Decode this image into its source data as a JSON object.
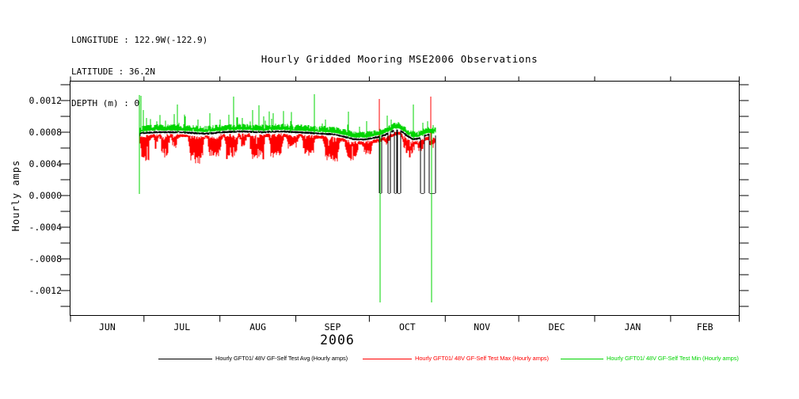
{
  "header": {
    "longitude": "LONGITUDE : 122.9W(-122.9)",
    "latitude": "LATITUDE : 36.2N",
    "depth": "DEPTH (m) : 0"
  },
  "title": "Hourly Gridded Mooring MSE2006 Observations",
  "chart_data": {
    "type": "line",
    "title": "Hourly Gridded Mooring MSE2006 Observations",
    "ylabel": "Hourly amps",
    "year_label": "2006",
    "ylim": [
      -0.00148,
      0.00145
    ],
    "yticks_major": [
      0.0012,
      0.0008,
      0.0004,
      0.0,
      -0.0004,
      -0.0008,
      -0.0012
    ],
    "ytick_labels": [
      "0.0012",
      "0.0008",
      "0.0004",
      "0.0000",
      "-.0004",
      "-.0008",
      "-.0012"
    ],
    "ytick_minor_step": 0.0002,
    "month_labels": [
      "JUN",
      "JUL",
      "AUG",
      "SEP",
      "OCT",
      "NOV",
      "DEC",
      "JAN",
      "FEB"
    ],
    "month_boundary_days": [
      0,
      30,
      61,
      92,
      122,
      153,
      183,
      214,
      245,
      273
    ],
    "x_axis_span_days": 273,
    "grid": false,
    "legend_position": "bottom",
    "data_range_days": [
      28,
      149
    ],
    "noise_seed": 20060601,
    "baseline_keyframes": [
      [
        28,
        0.00072
      ],
      [
        28.4,
        0.00079
      ],
      [
        35,
        0.0008
      ],
      [
        45,
        0.0008
      ],
      [
        55,
        0.00078
      ],
      [
        62,
        0.0008
      ],
      [
        70,
        0.00081
      ],
      [
        78,
        0.0008
      ],
      [
        85,
        0.00081
      ],
      [
        92,
        0.0008
      ],
      [
        98,
        0.00079
      ],
      [
        104,
        0.00078
      ],
      [
        108,
        0.00077
      ],
      [
        112,
        0.00074
      ],
      [
        116,
        0.00071
      ],
      [
        120,
        0.00071
      ],
      [
        124,
        0.00073
      ],
      [
        126,
        0.00074
      ],
      [
        128,
        0.00076
      ],
      [
        130,
        0.00079
      ],
      [
        132,
        0.00082
      ],
      [
        134,
        0.00083
      ],
      [
        136,
        0.00079
      ],
      [
        138,
        0.00074
      ],
      [
        140,
        0.00071
      ],
      [
        142,
        0.00072
      ],
      [
        144,
        0.00075
      ],
      [
        146,
        0.00077
      ],
      [
        149,
        0.00076
      ]
    ],
    "series": [
      {
        "name": "Hourly GFT01/ 48V GF-Self Test Avg (Hourly amps)",
        "color": "#000000",
        "role": "average-line",
        "down_spikes": [
          [
            28.12,
            0.00012
          ]
        ],
        "dropouts_to_floor": [
          [
            125.9,
            126.9
          ],
          [
            129.7,
            130.7
          ],
          [
            132.1,
            133.1
          ],
          [
            133.5,
            134.6
          ],
          [
            142.8,
            144.4
          ],
          [
            146.5,
            148.9
          ]
        ],
        "dropout_floor_value": 3e-05
      },
      {
        "name": "Hourly GFT01/ 48V GF-Self Test Max (Hourly amps)",
        "color": "#ff0000",
        "role": "band-below-average",
        "dip_clusters": [
          [
            28.3,
            33,
            0.0003
          ],
          [
            34,
            36,
            0.00015
          ],
          [
            36.5,
            40.5,
            0.00028
          ],
          [
            41,
            44,
            0.00015
          ],
          [
            48,
            54.5,
            0.00032
          ],
          [
            56,
            62,
            0.00026
          ],
          [
            63,
            68.5,
            0.0003
          ],
          [
            69,
            72,
            0.00015
          ],
          [
            73,
            79.5,
            0.0003
          ],
          [
            81,
            87,
            0.00026
          ],
          [
            88,
            93,
            0.00015
          ],
          [
            94.5,
            100,
            0.00022
          ],
          [
            103,
            110,
            0.00028
          ],
          [
            112,
            117.5,
            0.00022
          ],
          [
            119,
            123.5,
            0.00014
          ],
          [
            128,
            131,
            0.0001
          ],
          [
            135.5,
            140.5,
            0.0002
          ],
          [
            141.5,
            144.5,
            0.00014
          ],
          [
            146,
            149,
            0.0001
          ]
        ],
        "up_spikes": [
          [
            126.1,
            0.00122
          ],
          [
            147.1,
            0.00125
          ]
        ]
      },
      {
        "name": "Hourly GFT01/ 48V GF-Self Test Min (Hourly amps)",
        "color": "#00d400",
        "role": "band-above-average",
        "up_spikes": [
          [
            28.1,
            0.00127
          ],
          [
            28.9,
            0.00126
          ],
          [
            29.6,
            0.00108
          ],
          [
            31,
            0.00098
          ],
          [
            43.5,
            0.00115
          ],
          [
            47,
            0.001
          ],
          [
            52,
            0.00096
          ],
          [
            57,
            0.00104
          ],
          [
            61,
            0.00096
          ],
          [
            66.5,
            0.00125
          ],
          [
            70,
            0.00098
          ],
          [
            74.5,
            0.00108
          ],
          [
            76.8,
            0.00114
          ],
          [
            79,
            0.001
          ],
          [
            82,
            0.00097
          ],
          [
            90,
            0.00094
          ],
          [
            99.5,
            0.00128
          ],
          [
            104,
            0.00096
          ],
          [
            113.5,
            0.00106
          ],
          [
            121,
            0.00094
          ],
          [
            131,
            0.00096
          ],
          [
            140,
            0.00115
          ],
          [
            144,
            0.00092
          ]
        ],
        "down_spikes": [
          [
            28.15,
            2e-05
          ],
          [
            126.4,
            -0.00135
          ],
          [
            147.45,
            -0.00135
          ]
        ]
      }
    ]
  },
  "legend": {
    "items": [
      {
        "label": "Hourly GFT01/ 48V GF-Self Test Avg (Hourly amps)",
        "color": "#000000"
      },
      {
        "label": "Hourly GFT01/ 48V GF-Self Test Max (Hourly amps)",
        "color": "#ff0000"
      },
      {
        "label": "Hourly GFT01/ 48V GF-Self Test Min (Hourly amps)",
        "color": "#00d400"
      }
    ]
  }
}
